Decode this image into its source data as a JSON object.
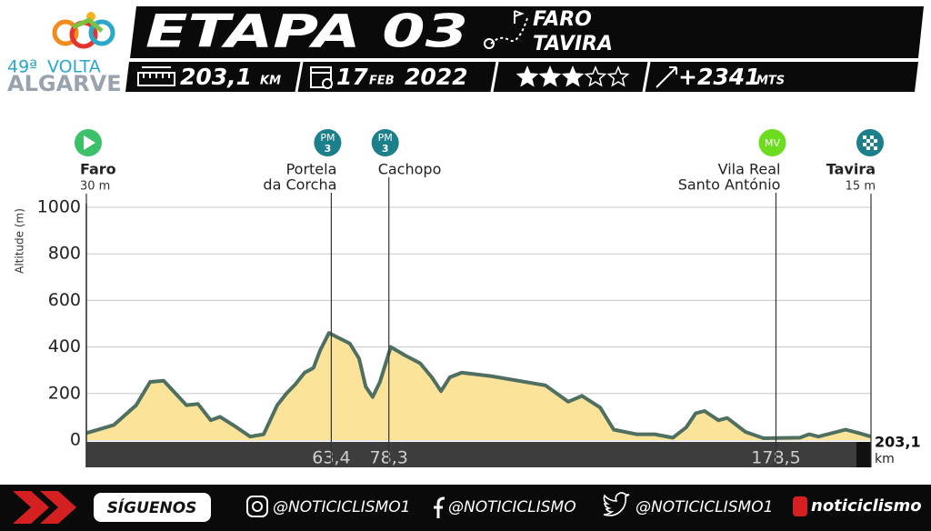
{
  "header": {
    "logo": {
      "edition": "49ª",
      "line1": "VOLTA",
      "line2": "ALGARVE"
    },
    "stage": "ETAPA 03",
    "start": "FARO",
    "finish": "TAVIRA",
    "distance": "203,1",
    "distance_unit": "KM",
    "date_day": "17",
    "date_month": "FEB",
    "date_year": "2022",
    "difficulty": 3,
    "difficulty_max": 5,
    "climb": "+2341",
    "climb_unit": "MTS"
  },
  "chart_data": {
    "type": "area",
    "ylabel": "Altitude (m)",
    "xlabel": "km",
    "color": "#fbe39a",
    "line_color": "#4f6f60",
    "x": [
      0,
      7.1,
      12.9,
      16.5,
      20,
      25.9,
      28.9,
      32.2,
      34.6,
      38.4,
      42.4,
      45.9,
      49.4,
      51.8,
      54.1,
      56.5,
      58.8,
      60.5,
      62.8,
      65.2,
      68.2,
      70.6,
      72.3,
      74.1,
      76,
      78.8,
      82.4,
      86.4,
      89.4,
      91.8,
      94.1,
      97.2,
      104.7,
      118.8,
      124.7,
      128.3,
      133,
      136.5,
      142.4,
      147.1,
      151.8,
      155.3,
      157.7,
      160,
      163.6,
      165.9,
      170.6,
      175.3,
      184.7,
      187.1,
      189.5,
      196.5,
      200,
      203.1
    ],
    "values": [
      30,
      65,
      150,
      250,
      255,
      150,
      155,
      85,
      100,
      60,
      15,
      25,
      150,
      200,
      240,
      290,
      310,
      385,
      460,
      440,
      415,
      350,
      230,
      185,
      250,
      400,
      365,
      330,
      270,
      210,
      270,
      290,
      275,
      235,
      165,
      190,
      140,
      45,
      25,
      25,
      10,
      55,
      115,
      125,
      85,
      95,
      35,
      8,
      10,
      25,
      15,
      45,
      30,
      15
    ],
    "xlim": [
      0,
      203.1
    ],
    "ylim": [
      0,
      1000
    ],
    "yticks": [
      0,
      200,
      400,
      600,
      800,
      1000
    ],
    "xticks": [
      {
        "value": 63.4,
        "label": "63,4"
      },
      {
        "value": 78.3,
        "label": "78,3"
      },
      {
        "value": 178.5,
        "label": "178,5"
      },
      {
        "value": 203.1,
        "label": "203,1"
      }
    ],
    "grid": true,
    "waypoints": [
      {
        "x": 0,
        "label": [
          "Faro"
        ],
        "sublabel": "30 m",
        "icon": "start"
      },
      {
        "x": 63.4,
        "label": [
          "Portela",
          "da Corcha"
        ],
        "badge": "PM",
        "badge_num": "3",
        "icon": "pm"
      },
      {
        "x": 78.3,
        "label": [
          "Cachopo"
        ],
        "badge": "PM",
        "badge_num": "3",
        "icon": "pm"
      },
      {
        "x": 178.5,
        "label": [
          "Vila Real",
          "Santo António"
        ],
        "badge": "MV",
        "icon": "mv"
      },
      {
        "x": 203.1,
        "label": [
          "Tavira"
        ],
        "sublabel": "15 m",
        "icon": "finish"
      }
    ]
  },
  "footer": {
    "follow": "SÍGUENOS",
    "instagram": "@NOTICICLISMO1",
    "facebook": "@NOTICICLISMO",
    "twitter": "@NOTICICLISMO1",
    "brand": "noticiclismo"
  }
}
